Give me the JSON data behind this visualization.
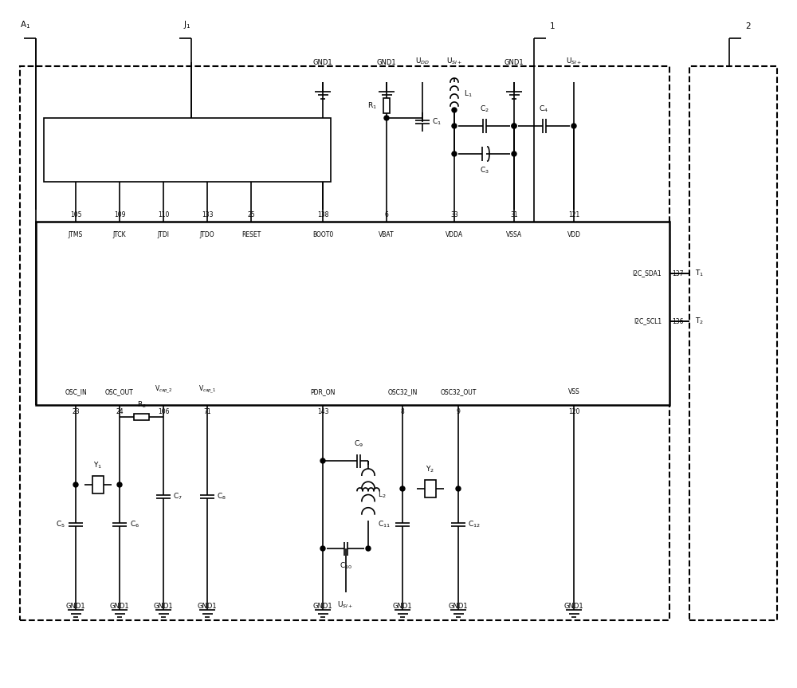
{
  "bg_color": "#ffffff",
  "line_color": "#000000",
  "figsize": [
    10.0,
    8.63
  ],
  "dpi": 100,
  "xlim": [
    0,
    100
  ],
  "ylim": [
    0,
    86.3
  ]
}
